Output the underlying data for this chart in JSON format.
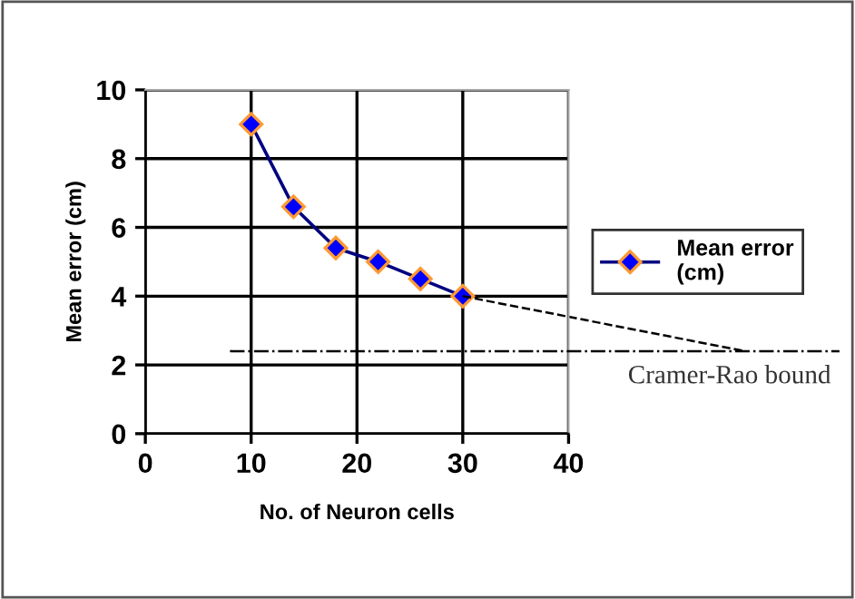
{
  "chart_data": {
    "type": "line",
    "xlabel": "No. of Neuron cells",
    "ylabel": "Mean error (cm)",
    "x": [
      10,
      14,
      18,
      22,
      26,
      30
    ],
    "series": [
      {
        "name": "Mean error\n(cm)",
        "color": "#000080",
        "values": [
          9,
          6.6,
          5.4,
          5.0,
          4.5,
          4.0
        ],
        "marker": "diamond"
      },
      {
        "type": "line",
        "x": [
          30,
          40
        ],
        "values": [
          4.0,
          3.4
        ],
        "color": "#000000",
        "line_style": "dashed",
        "marker": "none"
      }
    ],
    "ref_lines": [
      {
        "axis": "y",
        "value": 2.4,
        "label": "Cramer-Rao bound",
        "color": "#000000",
        "line_style": "dashdot"
      }
    ],
    "xlim": [
      0,
      40
    ],
    "xticks": [
      0,
      10,
      20,
      30,
      40
    ],
    "ylim": [
      0,
      10
    ],
    "yticks": [
      0,
      2,
      4,
      6,
      8,
      10
    ],
    "grid": true,
    "legend": "right"
  }
}
